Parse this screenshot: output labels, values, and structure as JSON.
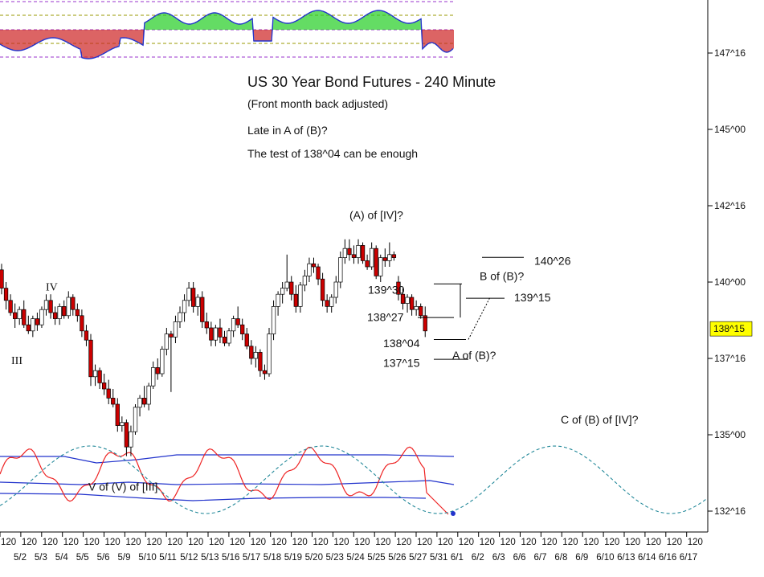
{
  "chart_data": {
    "type": "candlestick",
    "title": "US 30 Year Bond Futures - 240 Minute",
    "subtitle": "(Front month back adjusted)",
    "notes": [
      "Late in A of (B)?",
      "The test of 138^04 can be enough"
    ],
    "y_axis": {
      "ticks": [
        "147^16",
        "145^00",
        "142^16",
        "140^00",
        "137^16",
        "135^00",
        "132^16"
      ],
      "tick_values": [
        147.5,
        145.0,
        142.5,
        140.0,
        137.5,
        135.0,
        132.5
      ],
      "range": [
        131.75,
        149.25
      ],
      "current_price_label": "138^15",
      "current_price_value": 138.47
    },
    "x_axis": {
      "interval_labels": [
        "120",
        "120",
        "120",
        "120",
        "120",
        "120",
        "120",
        "120",
        "120",
        "120",
        "120",
        "120",
        "120",
        "120",
        "120",
        "120",
        "120",
        "120",
        "120",
        "120",
        "120",
        "120",
        "120",
        "120",
        "120",
        "120",
        "120",
        "120",
        "120",
        "120",
        "120",
        "120",
        "120",
        "120"
      ],
      "date_labels": [
        "5/2",
        "5/3",
        "5/4",
        "5/5",
        "5/6",
        "5/9",
        "5/10",
        "5/11",
        "5/12",
        "5/13",
        "5/16",
        "5/17",
        "5/18",
        "5/19",
        "5/20",
        "5/23",
        "5/24",
        "5/25",
        "5/26",
        "5/27",
        "5/31",
        "6/1",
        "6/2",
        "6/3",
        "6/6",
        "6/7",
        "6/8",
        "6/9",
        "6/10",
        "6/13",
        "6/14",
        "6/16",
        "6/17"
      ],
      "date_labels_as_printed": "5/2 5/3 5/4 5/5 5/6 5/9 5/105/115/125/135/165/175/185/195/205/235/245/255/265/275/316/1 6/2 6/3 6/6 6/7 6/8 6/9 6/106/136/146/166/1?"
    },
    "candles": [
      {
        "o": 140.4,
        "h": 140.6,
        "l": 139.6,
        "c": 139.8
      },
      {
        "o": 139.8,
        "h": 140.0,
        "l": 139.1,
        "c": 139.4
      },
      {
        "o": 139.4,
        "h": 139.6,
        "l": 138.9,
        "c": 139.0
      },
      {
        "o": 139.0,
        "h": 139.3,
        "l": 138.5,
        "c": 138.8
      },
      {
        "o": 138.8,
        "h": 139.2,
        "l": 138.6,
        "c": 139.1
      },
      {
        "o": 139.1,
        "h": 139.4,
        "l": 138.5,
        "c": 138.6
      },
      {
        "o": 138.6,
        "h": 138.9,
        "l": 138.3,
        "c": 138.4
      },
      {
        "o": 138.4,
        "h": 138.9,
        "l": 138.2,
        "c": 138.8
      },
      {
        "o": 138.8,
        "h": 139.0,
        "l": 138.4,
        "c": 138.6
      },
      {
        "o": 138.6,
        "h": 139.2,
        "l": 138.5,
        "c": 139.1
      },
      {
        "o": 139.1,
        "h": 139.6,
        "l": 138.9,
        "c": 139.4
      },
      {
        "o": 139.4,
        "h": 139.6,
        "l": 138.8,
        "c": 139.0
      },
      {
        "o": 139.0,
        "h": 139.2,
        "l": 138.6,
        "c": 138.8
      },
      {
        "o": 138.8,
        "h": 139.3,
        "l": 138.6,
        "c": 139.2
      },
      {
        "o": 139.2,
        "h": 139.4,
        "l": 138.8,
        "c": 138.9
      },
      {
        "o": 138.9,
        "h": 139.7,
        "l": 138.8,
        "c": 139.5
      },
      {
        "o": 139.5,
        "h": 139.6,
        "l": 138.9,
        "c": 139.1
      },
      {
        "o": 139.1,
        "h": 139.3,
        "l": 138.7,
        "c": 138.9
      },
      {
        "o": 138.9,
        "h": 139.1,
        "l": 138.2,
        "c": 138.4
      },
      {
        "o": 138.4,
        "h": 138.6,
        "l": 137.9,
        "c": 138.1
      },
      {
        "o": 138.1,
        "h": 138.3,
        "l": 136.6,
        "c": 136.9
      },
      {
        "o": 136.9,
        "h": 137.3,
        "l": 136.6,
        "c": 137.1
      },
      {
        "o": 137.1,
        "h": 137.2,
        "l": 136.5,
        "c": 136.7
      },
      {
        "o": 136.7,
        "h": 137.0,
        "l": 136.3,
        "c": 136.5
      },
      {
        "o": 136.5,
        "h": 136.8,
        "l": 136.0,
        "c": 136.2
      },
      {
        "o": 136.2,
        "h": 136.5,
        "l": 135.9,
        "c": 136.0
      },
      {
        "o": 136.0,
        "h": 136.2,
        "l": 135.1,
        "c": 135.3
      },
      {
        "o": 135.3,
        "h": 135.6,
        "l": 135.1,
        "c": 135.4
      },
      {
        "o": 135.4,
        "h": 135.5,
        "l": 134.3,
        "c": 134.6
      },
      {
        "o": 134.6,
        "h": 135.3,
        "l": 134.3,
        "c": 135.1
      },
      {
        "o": 135.1,
        "h": 136.0,
        "l": 135.0,
        "c": 135.9
      },
      {
        "o": 135.9,
        "h": 136.3,
        "l": 135.6,
        "c": 136.2
      },
      {
        "o": 136.2,
        "h": 136.6,
        "l": 135.9,
        "c": 136.0
      },
      {
        "o": 136.0,
        "h": 136.7,
        "l": 135.8,
        "c": 136.6
      },
      {
        "o": 136.6,
        "h": 137.4,
        "l": 136.5,
        "c": 137.2
      },
      {
        "o": 137.2,
        "h": 137.5,
        "l": 136.8,
        "c": 137.0
      },
      {
        "o": 137.0,
        "h": 137.9,
        "l": 136.9,
        "c": 137.8
      },
      {
        "o": 137.8,
        "h": 138.5,
        "l": 137.6,
        "c": 138.3
      },
      {
        "o": 138.3,
        "h": 138.4,
        "l": 136.4,
        "c": 138.2
      },
      {
        "o": 138.2,
        "h": 138.9,
        "l": 138.0,
        "c": 138.7
      },
      {
        "o": 138.7,
        "h": 139.2,
        "l": 138.5,
        "c": 139.0
      },
      {
        "o": 139.0,
        "h": 139.6,
        "l": 138.7,
        "c": 139.4
      },
      {
        "o": 139.4,
        "h": 140.0,
        "l": 139.2,
        "c": 139.8
      },
      {
        "o": 139.8,
        "h": 140.0,
        "l": 139.0,
        "c": 139.2
      },
      {
        "o": 139.2,
        "h": 139.6,
        "l": 138.9,
        "c": 139.5
      },
      {
        "o": 139.5,
        "h": 139.7,
        "l": 138.5,
        "c": 138.7
      },
      {
        "o": 138.7,
        "h": 139.0,
        "l": 138.3,
        "c": 138.5
      },
      {
        "o": 138.5,
        "h": 138.7,
        "l": 137.9,
        "c": 138.1
      },
      {
        "o": 138.1,
        "h": 138.6,
        "l": 137.9,
        "c": 138.5
      },
      {
        "o": 138.5,
        "h": 138.8,
        "l": 138.0,
        "c": 138.2
      },
      {
        "o": 138.2,
        "h": 138.4,
        "l": 137.9,
        "c": 138.0
      },
      {
        "o": 138.0,
        "h": 138.5,
        "l": 137.9,
        "c": 138.4
      },
      {
        "o": 138.4,
        "h": 138.9,
        "l": 138.2,
        "c": 138.8
      },
      {
        "o": 138.8,
        "h": 139.2,
        "l": 138.5,
        "c": 138.6
      },
      {
        "o": 138.6,
        "h": 138.8,
        "l": 138.1,
        "c": 138.3
      },
      {
        "o": 138.3,
        "h": 138.5,
        "l": 137.8,
        "c": 137.9
      },
      {
        "o": 137.9,
        "h": 138.1,
        "l": 137.3,
        "c": 137.5
      },
      {
        "o": 137.5,
        "h": 137.9,
        "l": 137.2,
        "c": 137.7
      },
      {
        "o": 137.7,
        "h": 137.8,
        "l": 136.9,
        "c": 137.1
      },
      {
        "o": 137.1,
        "h": 137.3,
        "l": 136.8,
        "c": 137.0
      },
      {
        "o": 137.0,
        "h": 138.5,
        "l": 136.9,
        "c": 138.3
      },
      {
        "o": 138.3,
        "h": 139.4,
        "l": 138.1,
        "c": 139.2
      },
      {
        "o": 139.2,
        "h": 139.7,
        "l": 138.9,
        "c": 139.6
      },
      {
        "o": 139.6,
        "h": 140.0,
        "l": 139.3,
        "c": 139.8
      },
      {
        "o": 139.8,
        "h": 140.9,
        "l": 139.7,
        "c": 140.0
      },
      {
        "o": 140.0,
        "h": 140.2,
        "l": 139.4,
        "c": 139.6
      },
      {
        "o": 139.6,
        "h": 139.9,
        "l": 139.0,
        "c": 139.2
      },
      {
        "o": 139.2,
        "h": 140.0,
        "l": 139.0,
        "c": 139.9
      },
      {
        "o": 139.9,
        "h": 140.4,
        "l": 139.7,
        "c": 140.2
      },
      {
        "o": 140.2,
        "h": 140.8,
        "l": 140.0,
        "c": 140.6
      },
      {
        "o": 140.6,
        "h": 140.8,
        "l": 140.3,
        "c": 140.5
      },
      {
        "o": 140.5,
        "h": 140.6,
        "l": 139.9,
        "c": 140.1
      },
      {
        "o": 140.1,
        "h": 140.3,
        "l": 139.2,
        "c": 139.4
      },
      {
        "o": 139.4,
        "h": 139.6,
        "l": 139.0,
        "c": 139.2
      },
      {
        "o": 139.2,
        "h": 139.6,
        "l": 139.0,
        "c": 139.5
      },
      {
        "o": 139.5,
        "h": 140.2,
        "l": 139.3,
        "c": 140.0
      },
      {
        "o": 140.0,
        "h": 141.0,
        "l": 139.8,
        "c": 140.8
      },
      {
        "o": 140.8,
        "h": 141.4,
        "l": 140.6,
        "c": 141.1
      },
      {
        "o": 141.1,
        "h": 141.4,
        "l": 140.7,
        "c": 140.9
      },
      {
        "o": 140.9,
        "h": 141.2,
        "l": 140.6,
        "c": 140.8
      },
      {
        "o": 140.8,
        "h": 141.4,
        "l": 140.6,
        "c": 141.2
      },
      {
        "o": 141.2,
        "h": 141.3,
        "l": 140.6,
        "c": 140.7
      },
      {
        "o": 140.7,
        "h": 140.9,
        "l": 140.4,
        "c": 140.5
      },
      {
        "o": 140.5,
        "h": 141.3,
        "l": 140.4,
        "c": 141.1
      },
      {
        "o": 141.1,
        "h": 141.2,
        "l": 140.1,
        "c": 140.2
      },
      {
        "o": 140.2,
        "h": 140.9,
        "l": 140.0,
        "c": 140.8
      },
      {
        "o": 140.8,
        "h": 141.1,
        "l": 140.5,
        "c": 140.7
      },
      {
        "o": 140.7,
        "h": 141.3,
        "l": 140.5,
        "c": 140.9
      },
      {
        "o": 140.9,
        "h": 141.0,
        "l": 140.7,
        "c": 140.8
      },
      {
        "o": 140.0,
        "h": 140.2,
        "l": 139.4,
        "c": 139.6
      },
      {
        "o": 139.6,
        "h": 139.8,
        "l": 139.1,
        "c": 139.3
      },
      {
        "o": 139.3,
        "h": 139.6,
        "l": 139.0,
        "c": 139.5
      },
      {
        "o": 139.5,
        "h": 139.6,
        "l": 138.9,
        "c": 139.1
      },
      {
        "o": 139.1,
        "h": 139.4,
        "l": 138.9,
        "c": 139.2
      },
      {
        "o": 139.2,
        "h": 139.3,
        "l": 138.8,
        "c": 138.9
      },
      {
        "o": 138.9,
        "h": 139.2,
        "l": 138.2,
        "c": 138.4
      }
    ],
    "annotations": [
      {
        "text": "IV",
        "x": 57,
        "y": 139.85,
        "font": "serif"
      },
      {
        "text": "III",
        "x": 14,
        "y": 137.45,
        "font": "serif"
      },
      {
        "text": "V of (V) of [III]",
        "x": 110,
        "y": 133.3,
        "font": "sans"
      },
      {
        "text": "(A) of [IV]?",
        "x": 435,
        "y": 142.2,
        "font": "sans"
      },
      {
        "text": "139^30",
        "x": 458,
        "y": 139.75,
        "font": "sans"
      },
      {
        "text": "138^27",
        "x": 457,
        "y": 138.85,
        "font": "sans"
      },
      {
        "text": "138^04",
        "x": 477,
        "y": 138.0,
        "font": "sans"
      },
      {
        "text": "137^15",
        "x": 477,
        "y": 137.35,
        "font": "sans"
      },
      {
        "text": "A of (B)?",
        "x": 563,
        "y": 137.6,
        "font": "sans"
      },
      {
        "text": "B of (B)?",
        "x": 597,
        "y": 140.2,
        "font": "sans"
      },
      {
        "text": "139^15",
        "x": 640,
        "y": 139.5,
        "font": "sans"
      },
      {
        "text": "140^26",
        "x": 665,
        "y": 140.7,
        "font": "sans"
      },
      {
        "text": "C of (B) of [IV]?",
        "x": 698,
        "y": 135.5,
        "font": "sans"
      }
    ],
    "levels": [
      {
        "label": "140^26",
        "value": 140.81
      },
      {
        "label": "139^30",
        "value": 139.94
      },
      {
        "label": "139^15",
        "value": 139.47
      },
      {
        "label": "138^27",
        "value": 138.84
      },
      {
        "label": "138^04",
        "value": 138.12
      },
      {
        "label": "137^15",
        "value": 137.47
      }
    ],
    "colors": {
      "bull_candle": "#ffffff",
      "bear_candle": "#cc0000",
      "candle_outline": "#000000",
      "histogram_pos": "#22cc22",
      "histogram_neg": "#cc2222",
      "oscillator_line": "#2233cc",
      "level_dashed_purple": "#9933cc",
      "level_dashed_olive": "#999900",
      "cycle_line": "#228899",
      "stoch_red": "#ee2222",
      "band_blue": "#2233cc",
      "current_price_badge": "#ffff00"
    }
  }
}
